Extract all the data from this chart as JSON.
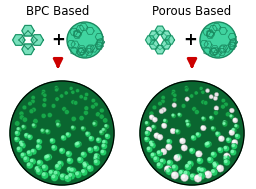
{
  "bg_color": "#ffffff",
  "title_left": "BPC Based",
  "title_right": "Porous Based",
  "title_fontsize": 8.5,
  "title_color": "#000000",
  "plus_color": "#000000",
  "arrow_color": "#cc0000",
  "mol_green": "#40d4a0",
  "mol_edge": "#1a8a60",
  "sphere_green_light": "#22cc66",
  "sphere_green_dark": "#0a6630",
  "sphere_green_mid": "#17a84a",
  "ball_highlight": "#88ffbb",
  "white_ball": "#e8e8e8",
  "white_ball_edge": "#999999",
  "white_ball_hl": "#ffffff"
}
